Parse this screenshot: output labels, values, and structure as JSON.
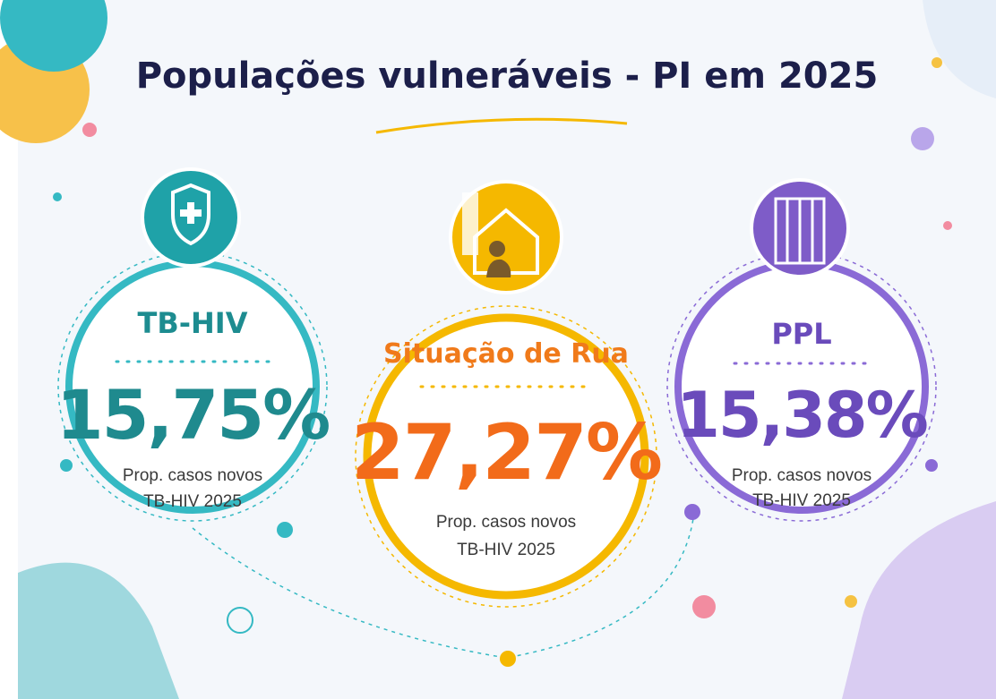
{
  "title": "Populações vulneráveis - PI em 2025",
  "cards": [
    {
      "label": "TB-HIV",
      "value": "15,75%",
      "caption": [
        "Prop. casos novos",
        "TB-HIV 2025"
      ]
    },
    {
      "label": "Situação de Rua",
      "value": "27,27%",
      "caption": [
        "Prop. casos novos",
        "TB-HIV 2025"
      ]
    },
    {
      "label": "PPL",
      "value": "15,38%",
      "caption": [
        "Prop. casos novos",
        "TB-HIV 2025"
      ]
    }
  ]
}
